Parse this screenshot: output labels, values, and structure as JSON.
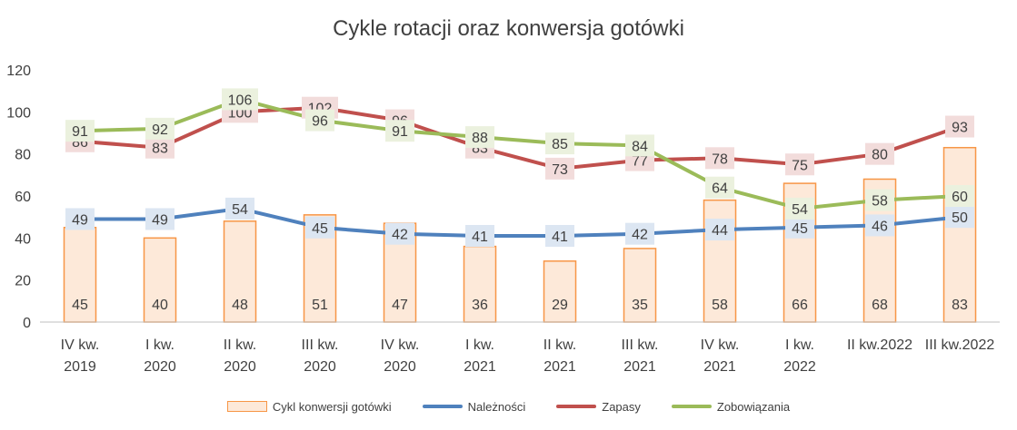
{
  "chart_data": {
    "type": "bar+line",
    "title": "Cykle rotacji oraz konwersja gotówki",
    "categories": [
      [
        "IV kw.",
        "2019"
      ],
      [
        "I kw.",
        "2020"
      ],
      [
        "II kw.",
        "2020"
      ],
      [
        "III kw.",
        "2020"
      ],
      [
        "IV kw.",
        "2020"
      ],
      [
        "I kw.",
        "2021"
      ],
      [
        "II kw.",
        "2021"
      ],
      [
        "III kw.",
        "2021"
      ],
      [
        "IV kw.",
        "2021"
      ],
      [
        "I kw.",
        "2022"
      ],
      [
        "II kw.2022"
      ],
      [
        "III kw.2022"
      ]
    ],
    "ylim": [
      0,
      120
    ],
    "yticks": [
      0,
      20,
      40,
      60,
      80,
      100,
      120
    ],
    "grid": false,
    "legend_position": "bottom",
    "bars": {
      "name": "Cykl konwersji gotówki",
      "values": [
        45,
        40,
        48,
        51,
        47,
        36,
        29,
        35,
        58,
        66,
        68,
        83
      ],
      "fill": "#fde9d9",
      "stroke": "#f79646"
    },
    "lines": [
      {
        "name": "Należności",
        "color": "#4f81bd",
        "label_bg": "#dce6f2",
        "values": [
          49,
          49,
          54,
          45,
          42,
          41,
          41,
          42,
          44,
          45,
          46,
          50
        ]
      },
      {
        "name": "Zapasy",
        "color": "#c0504d",
        "label_bg": "#f2dcdb",
        "values": [
          86,
          83,
          100,
          102,
          96,
          83,
          73,
          77,
          78,
          75,
          80,
          93
        ]
      },
      {
        "name": "Zobowiązania",
        "color": "#9bbb59",
        "label_bg": "#ebf1de",
        "values": [
          91,
          92,
          106,
          96,
          91,
          88,
          85,
          84,
          64,
          54,
          58,
          60
        ]
      }
    ]
  }
}
